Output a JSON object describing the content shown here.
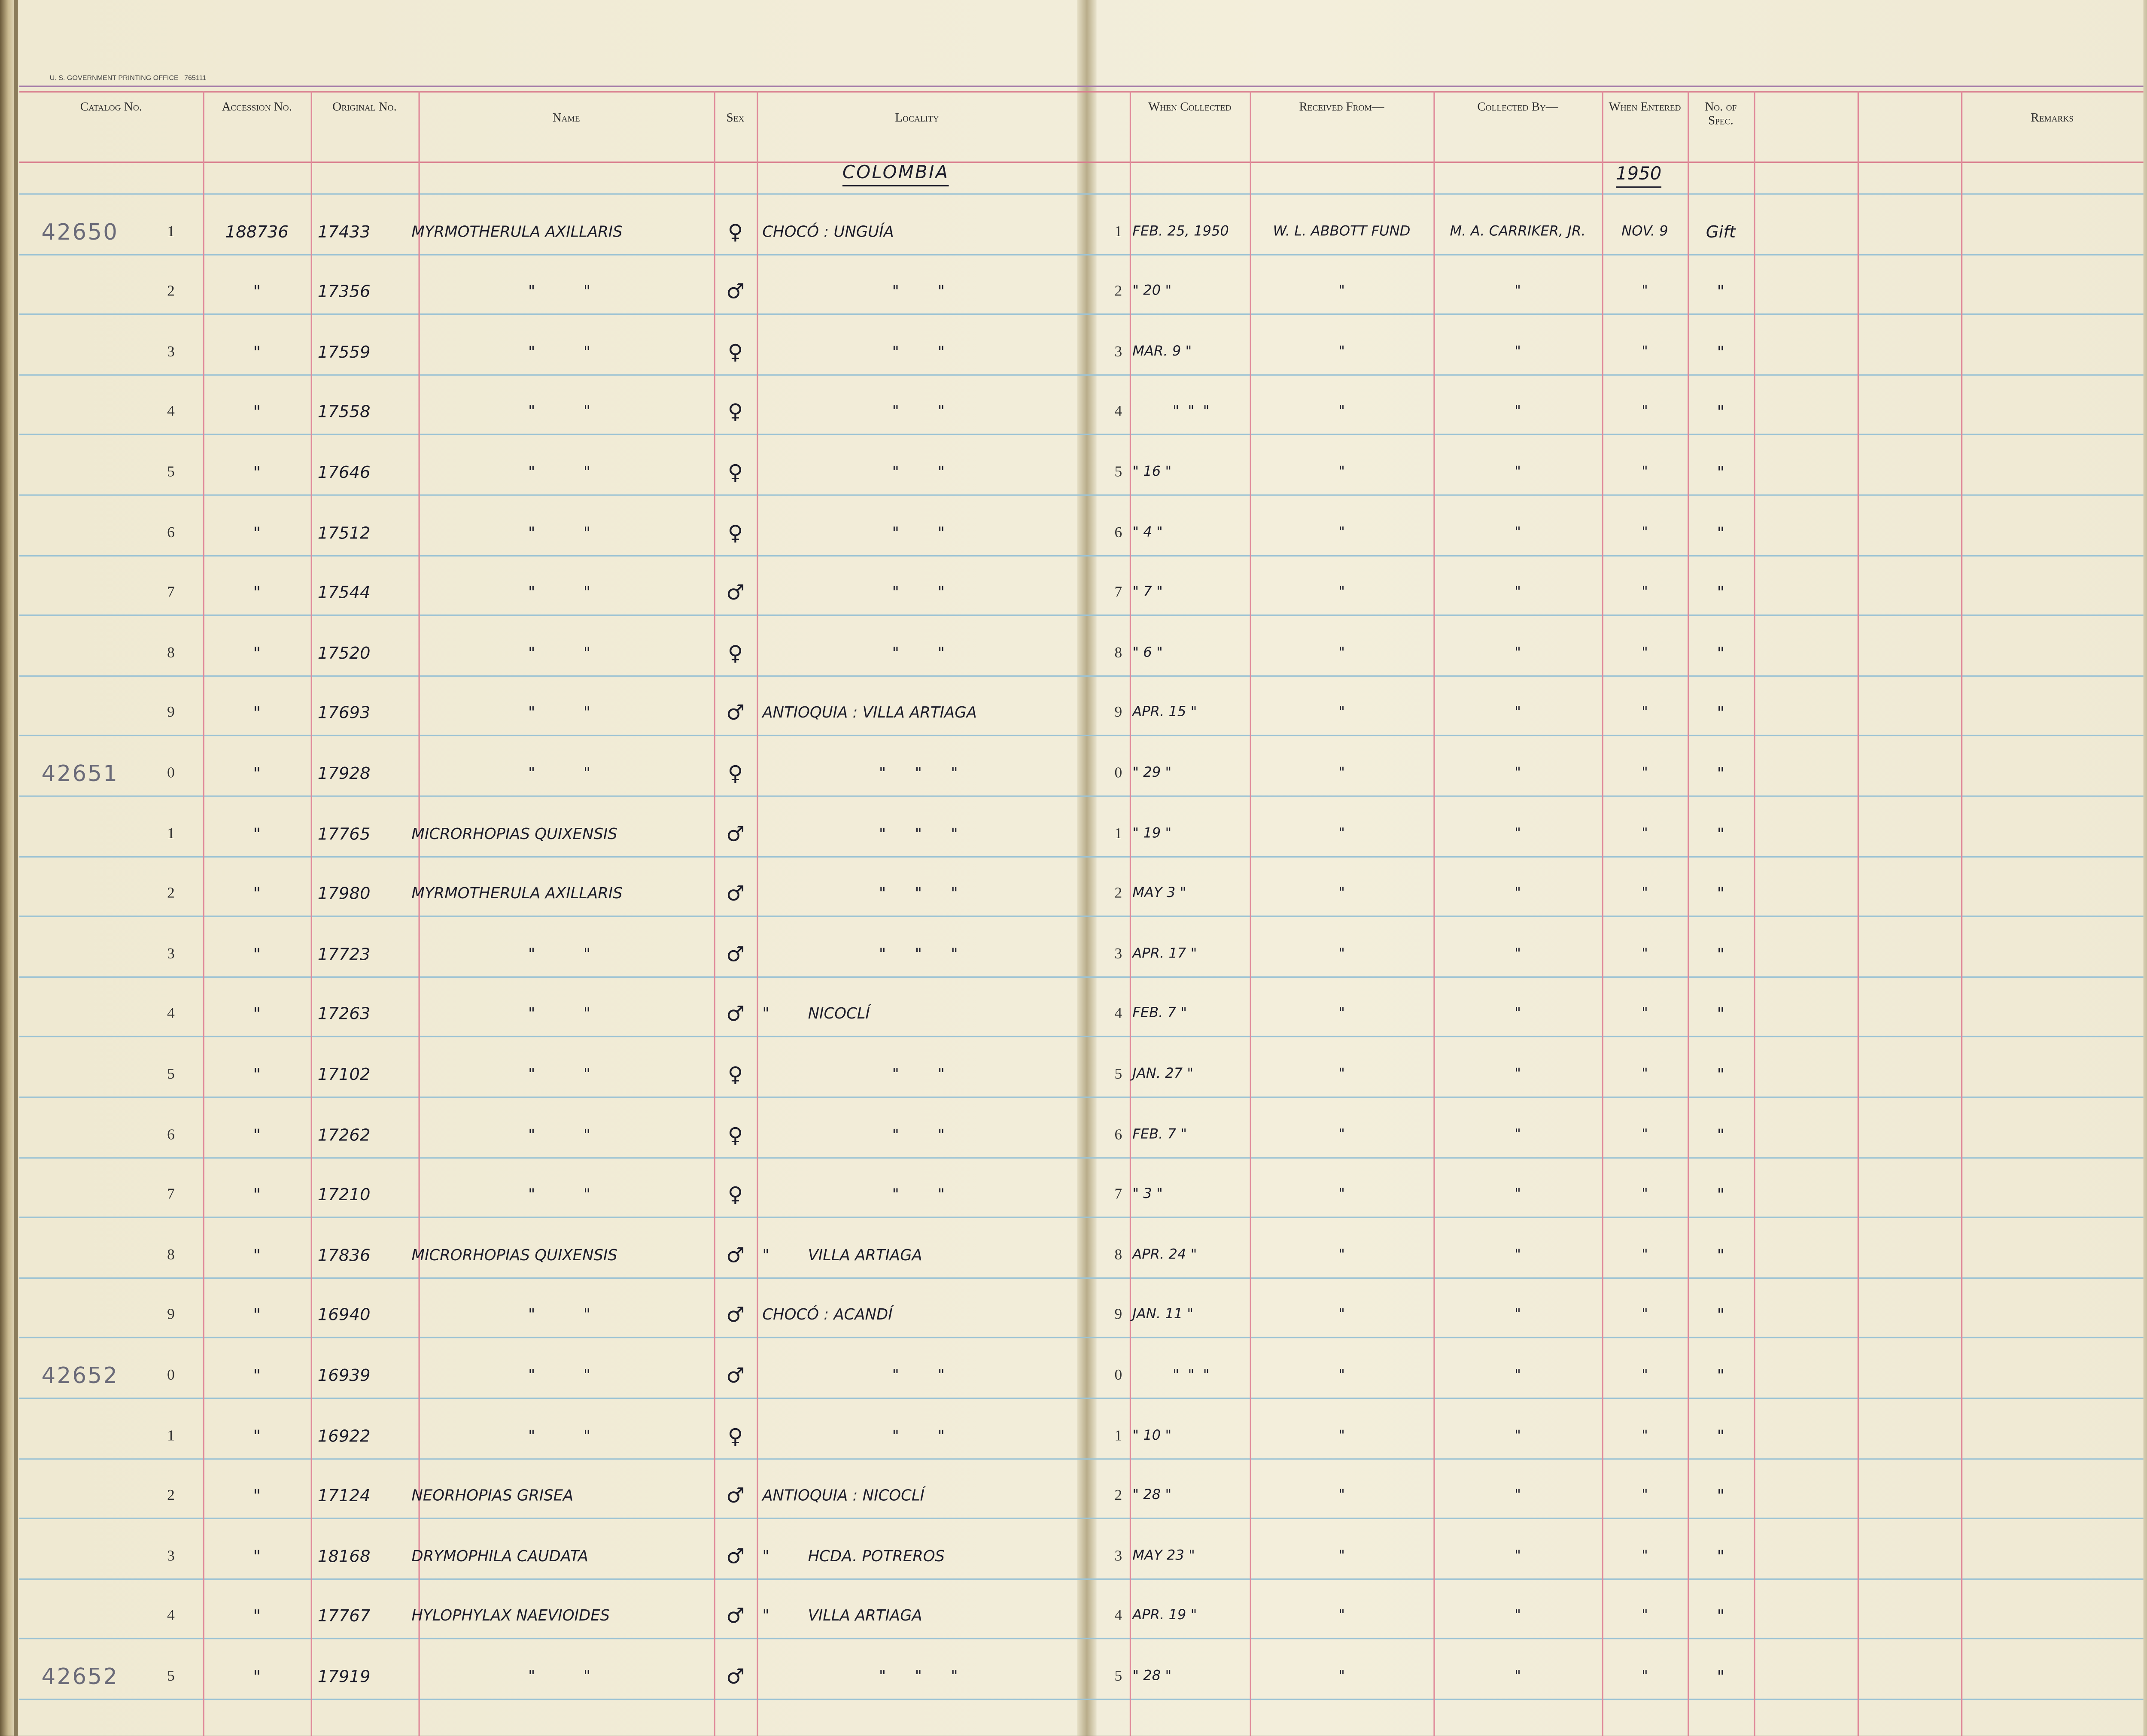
{
  "printer": "U. S. GOVERNMENT PRINTING OFFICE   765111",
  "headers": [
    "Catalog No.",
    "Accession No.",
    "Original No.",
    "Name",
    "Sex",
    "Locality",
    "When Collected",
    "Received From—",
    "Collected By—",
    "When Entered",
    "No. of Spec.",
    "Remarks"
  ],
  "country": "COLOMBIA",
  "year": "1950",
  "rows": [
    [
      "42650",
      "1",
      "188736",
      "17433",
      "MYRMOTHERULA AXILLARIS",
      "♀",
      "CHOCÓ : UNGUÍA",
      "1",
      "FEB. 25, 1950",
      "W. L. ABBOTT FUND",
      "M. A. CARRIKER, JR.",
      "NOV. 9",
      "Gift"
    ],
    [
      "",
      "2",
      "\"",
      "17356",
      "\"          \"",
      "♂",
      "\"        \"",
      "2",
      "\" 20 \"",
      "\"",
      "\"",
      "\"",
      "\""
    ],
    [
      "",
      "3",
      "\"",
      "17559",
      "\"          \"",
      "♀",
      "\"        \"",
      "3",
      "MAR. 9 \"",
      "\"",
      "\"",
      "\"",
      "\""
    ],
    [
      "",
      "4",
      "\"",
      "17558",
      "\"          \"",
      "♀",
      "\"        \"",
      "4",
      "\"  \"  \"",
      "\"",
      "\"",
      "\"",
      "\""
    ],
    [
      "",
      "5",
      "\"",
      "17646",
      "\"          \"",
      "♀",
      "\"        \"",
      "5",
      "\" 16 \"",
      "\"",
      "\"",
      "\"",
      "\""
    ],
    [
      "",
      "6",
      "\"",
      "17512",
      "\"          \"",
      "♀",
      "\"        \"",
      "6",
      "\" 4 \"",
      "\"",
      "\"",
      "\"",
      "\""
    ],
    [
      "",
      "7",
      "\"",
      "17544",
      "\"          \"",
      "♂",
      "\"        \"",
      "7",
      "\" 7 \"",
      "\"",
      "\"",
      "\"",
      "\""
    ],
    [
      "",
      "8",
      "\"",
      "17520",
      "\"          \"",
      "♀",
      "\"        \"",
      "8",
      "\" 6 \"",
      "\"",
      "\"",
      "\"",
      "\""
    ],
    [
      "",
      "9",
      "\"",
      "17693",
      "\"          \"",
      "♂",
      "ANTIOQUIA : VILLA ARTIAGA",
      "9",
      "APR. 15 \"",
      "\"",
      "\"",
      "\"",
      "\""
    ],
    [
      "42651",
      "0",
      "\"",
      "17928",
      "\"          \"",
      "♀",
      "\"      \"      \"",
      "0",
      "\" 29 \"",
      "\"",
      "\"",
      "\"",
      "\""
    ],
    [
      "",
      "1",
      "\"",
      "17765",
      "MICRORHOPIAS QUIXENSIS",
      "♂",
      "\"      \"      \"",
      "1",
      "\" 19 \"",
      "\"",
      "\"",
      "\"",
      "\""
    ],
    [
      "",
      "2",
      "\"",
      "17980",
      "MYRMOTHERULA AXILLARIS",
      "♂",
      "\"      \"      \"",
      "2",
      "MAY 3 \"",
      "\"",
      "\"",
      "\"",
      "\""
    ],
    [
      "",
      "3",
      "\"",
      "17723",
      "\"          \"",
      "♂",
      "\"      \"      \"",
      "3",
      "APR. 17 \"",
      "\"",
      "\"",
      "\"",
      "\""
    ],
    [
      "",
      "4",
      "\"",
      "17263",
      "\"          \"",
      "♂",
      "\"        NICOCLÍ",
      "4",
      "FEB. 7 \"",
      "\"",
      "\"",
      "\"",
      "\""
    ],
    [
      "",
      "5",
      "\"",
      "17102",
      "\"          \"",
      "♀",
      "\"        \"",
      "5",
      "JAN. 27 \"",
      "\"",
      "\"",
      "\"",
      "\""
    ],
    [
      "",
      "6",
      "\"",
      "17262",
      "\"          \"",
      "♀",
      "\"        \"",
      "6",
      "FEB. 7 \"",
      "\"",
      "\"",
      "\"",
      "\""
    ],
    [
      "",
      "7",
      "\"",
      "17210",
      "\"          \"",
      "♀",
      "\"        \"",
      "7",
      "\" 3 \"",
      "\"",
      "\"",
      "\"",
      "\""
    ],
    [
      "",
      "8",
      "\"",
      "17836",
      "MICRORHOPIAS QUIXENSIS",
      "♂",
      "\"        VILLA ARTIAGA",
      "8",
      "APR. 24 \"",
      "\"",
      "\"",
      "\"",
      "\""
    ],
    [
      "",
      "9",
      "\"",
      "16940",
      "\"          \"",
      "♂",
      "CHOCÓ : ACANDÍ",
      "9",
      "JAN. 11 \"",
      "\"",
      "\"",
      "\"",
      "\""
    ],
    [
      "42652",
      "0",
      "\"",
      "16939",
      "\"          \"",
      "♂",
      "\"        \"",
      "0",
      "\"  \"  \"",
      "\"",
      "\"",
      "\"",
      "\""
    ],
    [
      "",
      "1",
      "\"",
      "16922",
      "\"          \"",
      "♀",
      "\"        \"",
      "1",
      "\" 10 \"",
      "\"",
      "\"",
      "\"",
      "\""
    ],
    [
      "",
      "2",
      "\"",
      "17124",
      "NEORHOPIAS GRISEA",
      "♂",
      "ANTIOQUIA : NICOCLÍ",
      "2",
      "\" 28 \"",
      "\"",
      "\"",
      "\"",
      "\""
    ],
    [
      "",
      "3",
      "\"",
      "18168",
      "DRYMOPHILA CAUDATA",
      "♂",
      "\"        HCDA. POTREROS",
      "3",
      "MAY 23 \"",
      "\"",
      "\"",
      "\"",
      "\""
    ],
    [
      "",
      "4",
      "\"",
      "17767",
      "HYLOPHYLAX NAEVIOIDES",
      "♂",
      "\"        VILLA ARTIAGA",
      "4",
      "APR. 19 \"",
      "\"",
      "\"",
      "\"",
      "\""
    ],
    [
      "42652",
      "5",
      "\"",
      "17919",
      "\"          \"",
      "♂",
      "\"      \"      \"",
      "5",
      "\" 28 \"",
      "\"",
      "\"",
      "\"",
      "\""
    ]
  ]
}
